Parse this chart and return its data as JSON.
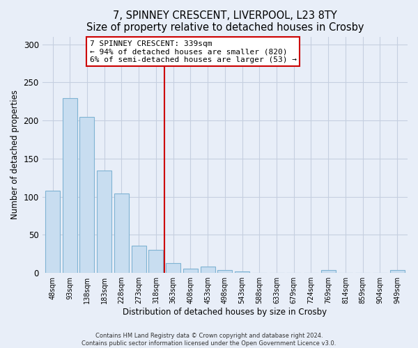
{
  "title": "7, SPINNEY CRESCENT, LIVERPOOL, L23 8TY",
  "subtitle": "Size of property relative to detached houses in Crosby",
  "xlabel": "Distribution of detached houses by size in Crosby",
  "ylabel": "Number of detached properties",
  "bar_labels": [
    "48sqm",
    "93sqm",
    "138sqm",
    "183sqm",
    "228sqm",
    "273sqm",
    "318sqm",
    "363sqm",
    "408sqm",
    "453sqm",
    "498sqm",
    "543sqm",
    "588sqm",
    "633sqm",
    "679sqm",
    "724sqm",
    "769sqm",
    "814sqm",
    "859sqm",
    "904sqm",
    "949sqm"
  ],
  "bar_values": [
    108,
    229,
    205,
    134,
    104,
    36,
    30,
    13,
    6,
    8,
    4,
    2,
    0,
    0,
    0,
    0,
    4,
    0,
    0,
    0,
    4
  ],
  "bar_color": "#c8ddf0",
  "bar_edge_color": "#7fb3d3",
  "vline_x": 6.5,
  "vline_color": "#cc0000",
  "ylim": [
    0,
    310
  ],
  "yticks": [
    0,
    50,
    100,
    150,
    200,
    250,
    300
  ],
  "annotation_title": "7 SPINNEY CRESCENT: 339sqm",
  "annotation_line1": "← 94% of detached houses are smaller (820)",
  "annotation_line2": "6% of semi-detached houses are larger (53) →",
  "footer_line1": "Contains HM Land Registry data © Crown copyright and database right 2024.",
  "footer_line2": "Contains public sector information licensed under the Open Government Licence v3.0.",
  "bg_color": "#e8eef8",
  "plot_bg_color": "#e8eef8",
  "grid_color": "#c5cfe0"
}
